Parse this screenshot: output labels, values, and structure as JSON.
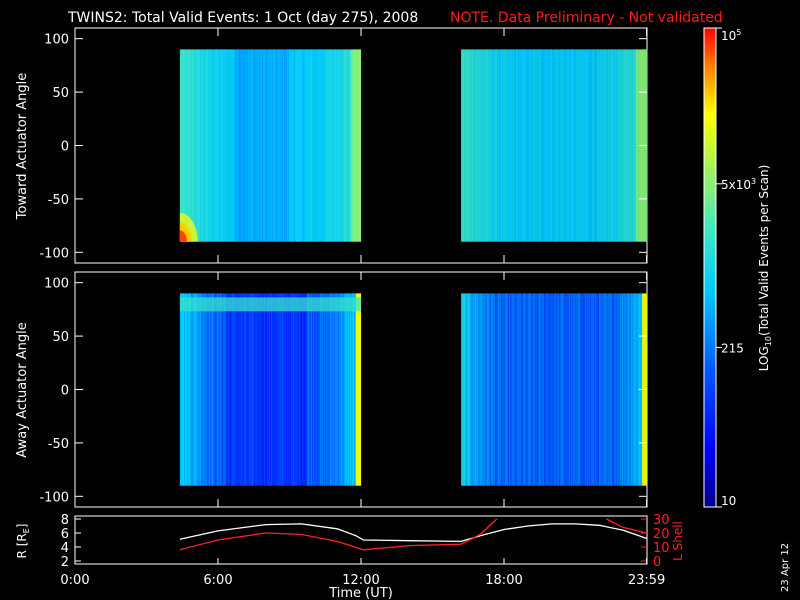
{
  "header": {
    "title": "TWINS2: Total Valid Events:  1 Oct (day 275), 2008",
    "note": "NOTE. Data Preliminary - Not validated"
  },
  "colors": {
    "background": "#000000",
    "foreground": "#ffffff",
    "note": "#ff1a1a",
    "r_line": "#ffffff",
    "lshell_line": "#ff2020"
  },
  "chart_data": [
    {
      "type": "heatmap",
      "panel": "top",
      "ylabel": "Toward Actuator Angle",
      "xlim": [
        0,
        24
      ],
      "ylim": [
        -110,
        110
      ],
      "yticks": [
        100,
        50,
        0,
        -50,
        -100
      ],
      "data_blocks": [
        {
          "x_range": [
            4.4,
            12.0
          ],
          "y_range": [
            -90,
            90
          ]
        },
        {
          "x_range": [
            16.2,
            24.0
          ],
          "y_range": [
            -90,
            90
          ]
        }
      ],
      "note_feature": "red/orange patch at bottom-left corner near -90 deg, ~4.4-5 UT"
    },
    {
      "type": "heatmap",
      "panel": "middle",
      "ylabel": "Away Actuator Angle",
      "xlim": [
        0,
        24
      ],
      "ylim": [
        -110,
        110
      ],
      "yticks": [
        100,
        50,
        0,
        -50,
        -100
      ],
      "data_blocks": [
        {
          "x_range": [
            4.4,
            12.0
          ],
          "y_range": [
            -90,
            90
          ]
        },
        {
          "x_range": [
            16.2,
            24.0
          ],
          "y_range": [
            -90,
            90
          ]
        }
      ]
    },
    {
      "type": "line",
      "panel": "bottom",
      "ylabel_left": "R [Rₑ]",
      "ylabel_left_main": "R [R",
      "ylabel_left_sub": "E",
      "ylabel_left_end": "]",
      "ylabel_right": "L Shell",
      "xlabel": "Time (UT)",
      "xlim": [
        0,
        24
      ],
      "xticks": [
        0,
        6,
        12,
        18,
        23.983
      ],
      "xtick_labels": [
        "0:00",
        "6:00",
        "12:00",
        "18:00",
        "23:59"
      ],
      "ylim_left": [
        2,
        8
      ],
      "yticks_left": [
        2,
        4,
        6,
        8
      ],
      "ylim_right": [
        0,
        30
      ],
      "yticks_right": [
        0,
        10,
        20,
        30
      ],
      "series": [
        {
          "name": "R",
          "axis": "left",
          "x": [
            4.4,
            6,
            8,
            9.5,
            11,
            11.8,
            12.1,
            14,
            16.2,
            17,
            18,
            19,
            20,
            21,
            22,
            23,
            24
          ],
          "y": [
            5.1,
            6.3,
            7.2,
            7.3,
            6.6,
            5.6,
            5.0,
            4.9,
            4.8,
            5.6,
            6.5,
            7.0,
            7.3,
            7.3,
            7.1,
            6.4,
            5.2
          ]
        },
        {
          "name": "L Shell",
          "axis": "right",
          "x": [
            4.4,
            6,
            8,
            9.5,
            11,
            12.1,
            14,
            16.2,
            17,
            17.7
          ],
          "y": [
            8,
            15,
            20,
            19,
            14,
            8,
            11,
            12,
            19,
            30
          ]
        },
        {
          "name": "L Shell (late)",
          "axis": "right",
          "x": [
            22.3,
            23,
            24
          ],
          "y": [
            30,
            24,
            20
          ]
        }
      ]
    }
  ],
  "colorbar": {
    "label_main": "LOG",
    "label_sub": "10",
    "label_end": "(Total Valid  Events per Scan)",
    "ticks": [
      {
        "main": "10",
        "exp": "5",
        "value": 100000
      },
      {
        "main": "5x10",
        "exp": "3",
        "value": 5000
      },
      {
        "main": "215",
        "exp": "",
        "value": 215
      },
      {
        "main": "10",
        "exp": "",
        "value": 10
      }
    ],
    "range": [
      10,
      100000
    ],
    "scale": "log"
  },
  "footer": {
    "date_stamp": "23 Apr 12"
  }
}
